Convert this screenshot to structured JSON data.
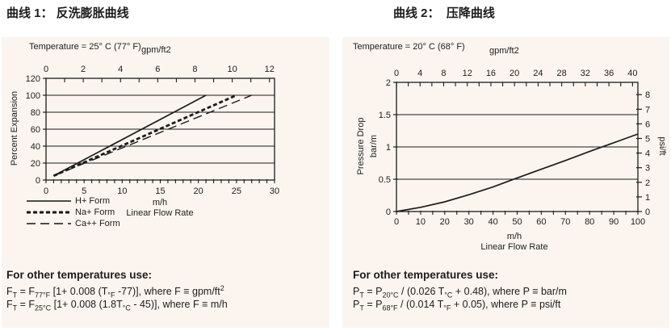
{
  "page": {
    "ink": "#1c1c1c",
    "panel_bg": "#fcf5ef",
    "background": "#ffffff"
  },
  "chart_data": [
    {
      "type": "line",
      "title": "曲线 1： 反洗膨胀曲线",
      "temperature_note": "Temperature = 25° C (77° F)",
      "top_axis": {
        "label": "gpm/ft2",
        "ticks": [
          0,
          2,
          4,
          6,
          8,
          10,
          12
        ],
        "minor_step": 1,
        "min": 0,
        "max": 12,
        "mh_per_unit": 2.4446
      },
      "x_axis": {
        "unit": "m/h",
        "name": "Linear Flow Rate",
        "ticks": [
          0,
          5,
          10,
          15,
          20,
          25,
          30
        ],
        "minor_step": 1,
        "min": 0,
        "max": 30
      },
      "y_axis": {
        "label": "Percent Expansion",
        "ticks": [
          0,
          20,
          40,
          60,
          80,
          100,
          120
        ],
        "min": 0,
        "max": 120
      },
      "grid": "horizontal",
      "legend_position": "bottom-left",
      "series": [
        {
          "name": "H+ Form",
          "style": "solid",
          "points": [
            [
              1,
              5
            ],
            [
              21,
              100
            ]
          ]
        },
        {
          "name": "Na+ Form",
          "style": "short-dash",
          "points": [
            [
              1,
              5
            ],
            [
              25,
              100
            ]
          ]
        },
        {
          "name": "Ca++ Form",
          "style": "long-dash",
          "points": [
            [
              1,
              5
            ],
            [
              27,
              100
            ]
          ]
        }
      ],
      "formulas": {
        "header": "For other temperatures use:",
        "lines": [
          "F~T~ = F~77°F~ [1+ 0.008 (T~°F~ -77)], where F ≡ gpm/ft^2^",
          "F~T~ = F~25°C~ [1+ 0.008 (1.8T~°C~ - 45)], where F ≡ m/h"
        ]
      }
    },
    {
      "type": "line",
      "title": "曲线 2：  压降曲线",
      "temperature_note": "Temperature = 20° C (68° F)",
      "top_axis": {
        "label": "gpm/ft2",
        "ticks": [
          0,
          4,
          8,
          12,
          16,
          20,
          24,
          28,
          32,
          36,
          40
        ],
        "minor_step": 2,
        "min": 0,
        "max": 40,
        "mh_per_unit": 2.4446
      },
      "x_axis": {
        "unit": "m/h",
        "name": "Linear Flow Rate",
        "ticks": [
          0,
          10,
          20,
          30,
          40,
          50,
          60,
          70,
          80,
          90,
          100
        ],
        "minor_step": 5,
        "min": 0,
        "max": 100
      },
      "y_axis": {
        "label": "Pressure Drop",
        "unit": "bar/m",
        "ticks": [
          0,
          0.5,
          1,
          1.5,
          2
        ],
        "tick_labels": [
          "0",
          "0.5",
          "1",
          "1.5",
          "2"
        ],
        "min": 0,
        "max": 2
      },
      "y2_axis": {
        "label": "psi/ft",
        "ticks": [
          0,
          1,
          2,
          3,
          4,
          5,
          6,
          7,
          8
        ],
        "psi_per_bar": 4.4208
      },
      "grid": "horizontal",
      "series": [
        {
          "name": "Pressure Drop",
          "style": "solid",
          "points": [
            [
              0,
              0
            ],
            [
              10,
              0.065
            ],
            [
              20,
              0.15
            ],
            [
              30,
              0.26
            ],
            [
              40,
              0.38
            ],
            [
              50,
              0.52
            ],
            [
              60,
              0.655
            ],
            [
              70,
              0.79
            ],
            [
              80,
              0.93
            ],
            [
              90,
              1.065
            ],
            [
              100,
              1.2
            ]
          ]
        }
      ],
      "formulas": {
        "header": "For other temperatures use:",
        "lines": [
          "P~T~ = P~20°C~ / (0.026 T~°C~ + 0.48), where P ≡ bar/m",
          "P~T~ = P~68°F~ / (0.014 T~°F~ + 0.05), where P ≡ psi/ft"
        ]
      }
    }
  ]
}
